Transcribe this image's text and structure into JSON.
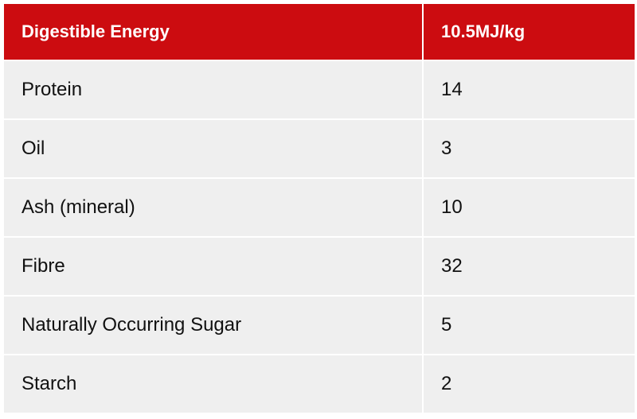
{
  "table": {
    "header": [
      "Digestible Energy",
      "10.5MJ/kg"
    ],
    "rows": [
      [
        "Protein",
        "14"
      ],
      [
        "Oil",
        "3"
      ],
      [
        "Ash (mineral)",
        "10"
      ],
      [
        "Fibre",
        "32"
      ],
      [
        "Naturally Occurring Sugar",
        "5"
      ],
      [
        "Starch",
        "2"
      ]
    ]
  }
}
